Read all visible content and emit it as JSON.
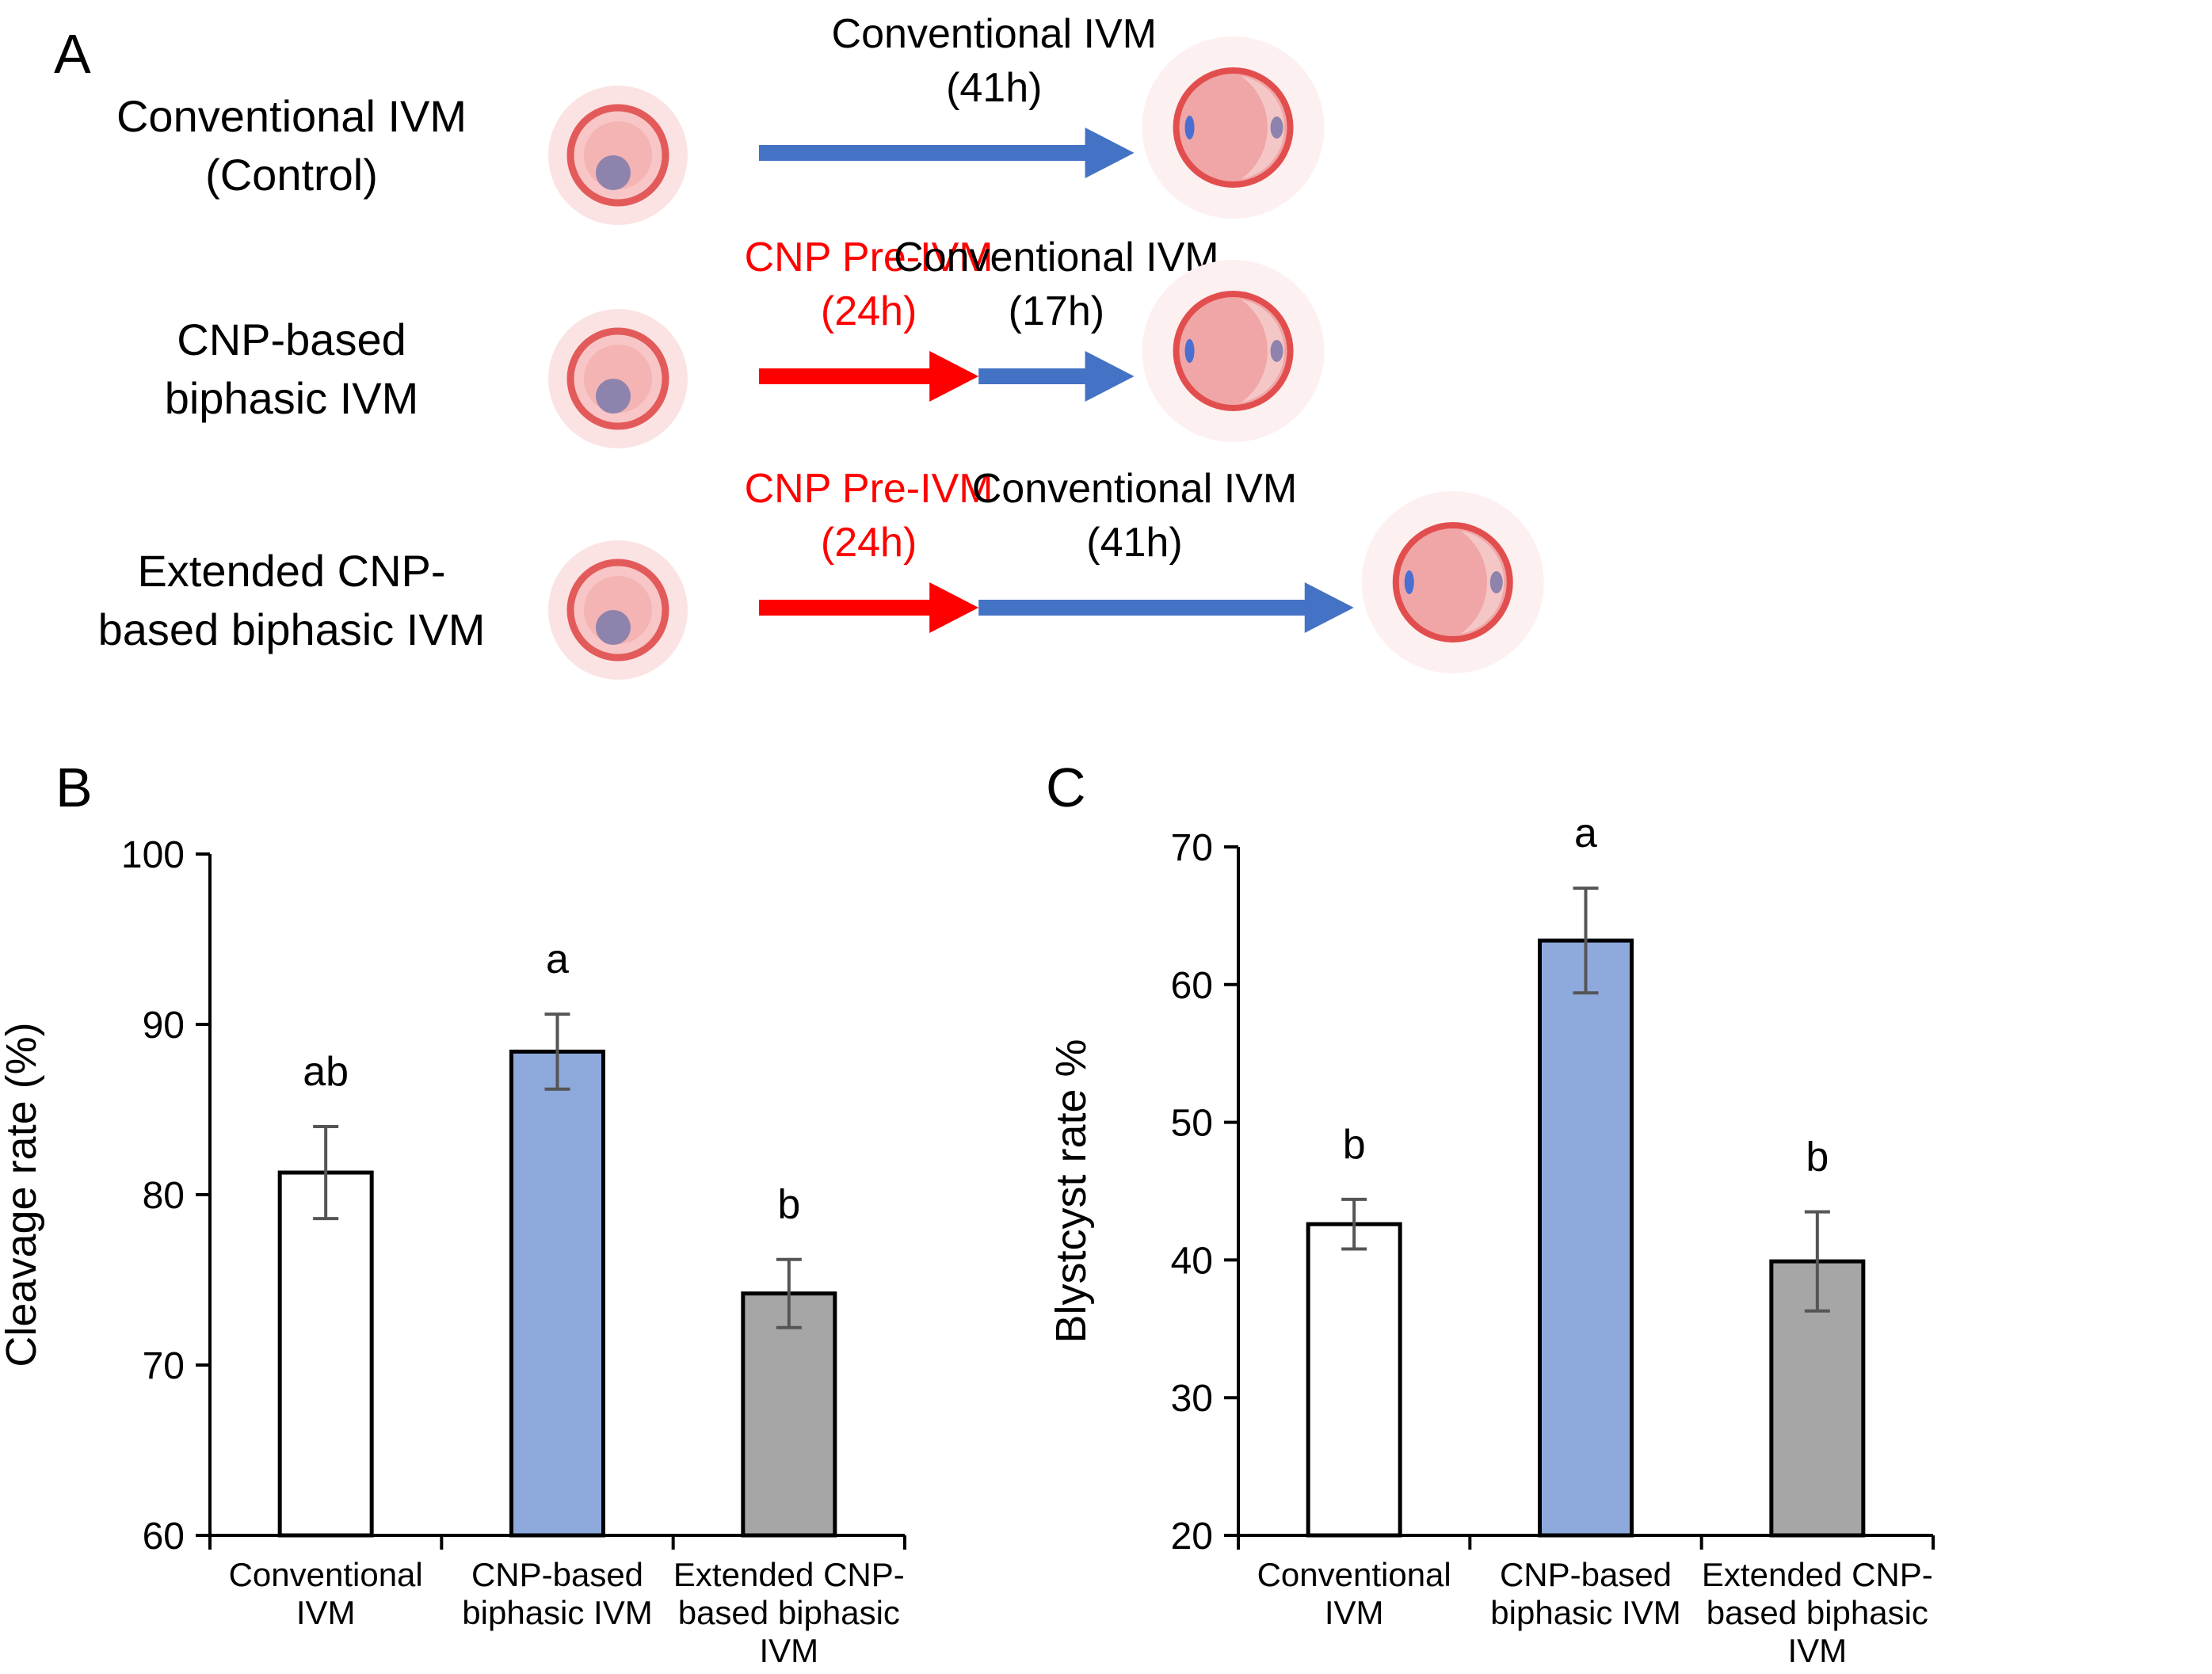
{
  "panelA": {
    "label": "A",
    "rows": [
      {
        "name": "Conventional IVM\n(Control)",
        "stages": [
          {
            "label": "Conventional IVM",
            "duration": "(41h)",
            "color": "#4472C4",
            "hours": 41
          }
        ]
      },
      {
        "name": "CNP-based\nbiphasic IVM",
        "stages": [
          {
            "label": "CNP Pre-IVM",
            "duration": "(24h)",
            "color": "#FF0000",
            "hours": 24
          },
          {
            "label": "Conventional IVM",
            "duration": "(17h)",
            "color": "#4472C4",
            "hours": 17
          }
        ]
      },
      {
        "name": "Extended CNP-\nbased biphasic IVM",
        "stages": [
          {
            "label": "CNP Pre-IVM",
            "duration": "(24h)",
            "color": "#FF0000",
            "hours": 24
          },
          {
            "label": "Conventional IVM",
            "duration": "(41h)",
            "color": "#4472C4",
            "hours": 41
          }
        ]
      }
    ]
  },
  "chart_data": [
    {
      "panel": "B",
      "type": "bar",
      "categories": [
        "Conventional\nIVM",
        "CNP-based\nbiphasic IVM",
        "Extended CNP-\nbased biphasic\nIVM"
      ],
      "values": [
        81.3,
        88.4,
        74.2
      ],
      "errors": [
        2.7,
        2.2,
        2.0
      ],
      "significance": [
        "ab",
        "a",
        "b"
      ],
      "colors": [
        "#FFFFFF",
        "#8EA9DB",
        "#A6A6A6"
      ],
      "ylabel": "Cleavage  rate  (%)",
      "xlabel": "",
      "ylim": [
        60,
        100
      ],
      "yticks": [
        60,
        70,
        80,
        90,
        100
      ]
    },
    {
      "panel": "C",
      "type": "bar",
      "categories": [
        "Conventional\nIVM",
        "CNP-based\nbiphasic IVM",
        "Extended CNP-\nbased biphasic\nIVM"
      ],
      "values": [
        42.6,
        63.2,
        39.9
      ],
      "errors": [
        1.8,
        3.8,
        3.6
      ],
      "significance": [
        "b",
        "a",
        "b"
      ],
      "colors": [
        "#FFFFFF",
        "#8EA9DB",
        "#A6A6A6"
      ],
      "ylabel": "Blystcyst rate %",
      "xlabel": "",
      "ylim": [
        20,
        70
      ],
      "yticks": [
        20,
        30,
        40,
        50,
        60,
        70
      ]
    }
  ]
}
